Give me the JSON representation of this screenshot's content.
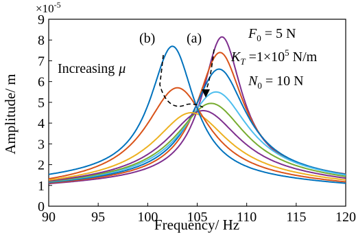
{
  "chart_data": {
    "type": "line",
    "xlabel": "Frequency/ Hz",
    "ylabel": "Amplitude/ m",
    "y_multiplier_label": "×10",
    "y_multiplier_exponent": "-5",
    "xlim": [
      90,
      120
    ],
    "ylim": [
      0,
      9
    ],
    "x_ticks": [
      "90",
      "95",
      "100",
      "105",
      "110",
      "115",
      "120"
    ],
    "y_ticks": [
      "0",
      "1",
      "2",
      "3",
      "4",
      "5",
      "6",
      "7",
      "8",
      "9"
    ],
    "grid": false,
    "annotations": {
      "label_a": "(a)",
      "label_b": "(b)",
      "increasing_text": "Increasing",
      "increasing_symbol": "μ",
      "F0_symbol": "F",
      "F0_sub": "0",
      "F0_value": " = 5 N",
      "KT_symbol": "K",
      "KT_sub": "T",
      "KT_value_pre": " =1×10",
      "KT_exp": "5",
      "KT_value_post": " N/m",
      "N0_symbol": "N",
      "N0_sub": "0",
      "N0_value": " = 10 N"
    },
    "series": [
      {
        "color": "#7E2F8E",
        "peak_x": 107.5,
        "peak_y": 8.15,
        "low_base": 0.95,
        "high_base": 1.3
      },
      {
        "color": "#D95319",
        "peak_x": 107.3,
        "peak_y": 7.4,
        "low_base": 0.95,
        "high_base": 1.25
      },
      {
        "color": "#0072BD",
        "peak_x": 107.2,
        "peak_y": 6.6,
        "low_base": 0.95,
        "high_base": 1.2
      },
      {
        "color": "#4DBEEE",
        "peak_x": 106.9,
        "peak_y": 5.5,
        "low_base": 0.95,
        "high_base": 1.15
      },
      {
        "color": "#77AC30",
        "peak_x": 106.4,
        "peak_y": 4.95,
        "low_base": 0.95,
        "high_base": 1.1
      },
      {
        "color": "#7E2F8E",
        "peak_x": 105.6,
        "peak_y": 4.6,
        "low_base": 0.95,
        "high_base": 1.05
      },
      {
        "color": "#EDB120",
        "peak_x": 104.4,
        "peak_y": 4.5,
        "low_base": 0.95,
        "high_base": 1.0
      },
      {
        "color": "#D95319",
        "peak_x": 103.0,
        "peak_y": 5.7,
        "low_base": 0.95,
        "high_base": 0.95
      },
      {
        "color": "#0072BD",
        "peak_x": 102.5,
        "peak_y": 7.7,
        "low_base": 1.25,
        "high_base": 0.95
      }
    ]
  }
}
